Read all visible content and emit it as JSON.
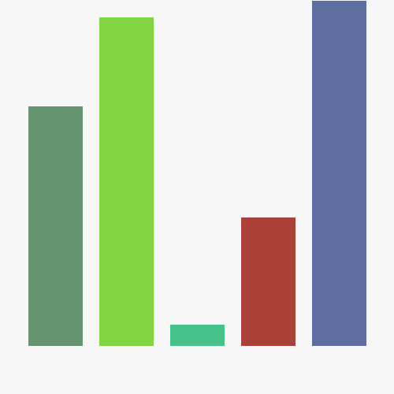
{
  "background_color": "#f7f7f7",
  "chart_data": {
    "type": "bar",
    "title": "",
    "xlabel": "",
    "ylabel": "",
    "categories": [
      "",
      "",
      "",
      "",
      ""
    ],
    "values": [
      304,
      417,
      27,
      163,
      438
    ],
    "colors": [
      "#659470",
      "#82d641",
      "#45c28a",
      "#ab4039",
      "#5e6ea0"
    ],
    "ylim": [
      0,
      438
    ],
    "grid": false,
    "legend": "none",
    "axes_visible": false
  }
}
